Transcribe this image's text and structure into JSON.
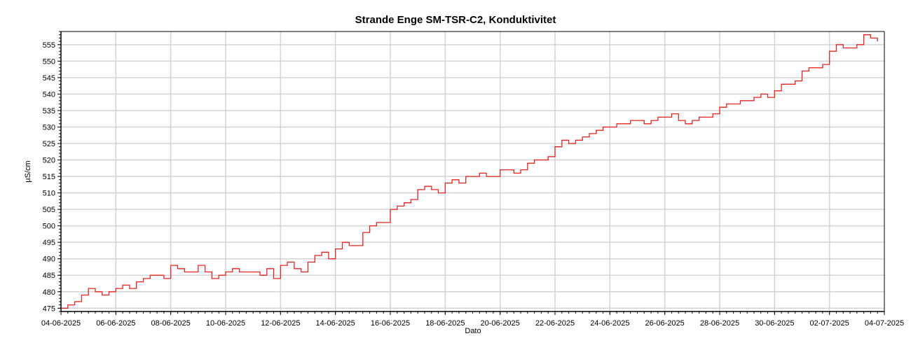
{
  "chart_data": {
    "type": "line",
    "title": "Strande Enge SM-TSR-C2, Konduktivitet",
    "xlabel": "Dato",
    "ylabel": "µS/cm",
    "xlim": [
      "2025-06-04",
      "2025-07-04"
    ],
    "ylim": [
      474,
      559
    ],
    "x_ticks": [
      "04-06-2025",
      "06-06-2025",
      "08-06-2025",
      "10-06-2025",
      "12-06-2025",
      "14-06-2025",
      "16-06-2025",
      "18-06-2025",
      "20-06-2025",
      "22-06-2025",
      "24-06-2025",
      "26-06-2025",
      "28-06-2025",
      "30-06-2025",
      "02-07-2025",
      "04-07-2025"
    ],
    "y_ticks": [
      475,
      480,
      485,
      490,
      495,
      500,
      505,
      510,
      515,
      520,
      525,
      530,
      535,
      540,
      545,
      550,
      555
    ],
    "grid": true,
    "legend": "none",
    "series": [
      {
        "color": "#e8231f",
        "x": [
          "2025-06-04 00:00",
          "2025-06-04 06:00",
          "2025-06-04 12:00",
          "2025-06-04 18:00",
          "2025-06-05 00:00",
          "2025-06-05 06:00",
          "2025-06-05 12:00",
          "2025-06-05 18:00",
          "2025-06-06 00:00",
          "2025-06-06 06:00",
          "2025-06-06 12:00",
          "2025-06-06 18:00",
          "2025-06-07 00:00",
          "2025-06-07 06:00",
          "2025-06-07 12:00",
          "2025-06-07 18:00",
          "2025-06-08 00:00",
          "2025-06-08 06:00",
          "2025-06-08 12:00",
          "2025-06-08 18:00",
          "2025-06-09 00:00",
          "2025-06-09 06:00",
          "2025-06-09 12:00",
          "2025-06-09 18:00",
          "2025-06-10 00:00",
          "2025-06-10 06:00",
          "2025-06-10 12:00",
          "2025-06-10 18:00",
          "2025-06-11 00:00",
          "2025-06-11 06:00",
          "2025-06-11 12:00",
          "2025-06-11 18:00",
          "2025-06-12 00:00",
          "2025-06-12 06:00",
          "2025-06-12 12:00",
          "2025-06-12 18:00",
          "2025-06-13 00:00",
          "2025-06-13 06:00",
          "2025-06-13 12:00",
          "2025-06-13 18:00",
          "2025-06-14 00:00",
          "2025-06-14 06:00",
          "2025-06-14 12:00",
          "2025-06-14 18:00",
          "2025-06-15 00:00",
          "2025-06-15 06:00",
          "2025-06-15 12:00",
          "2025-06-15 18:00",
          "2025-06-16 00:00",
          "2025-06-16 06:00",
          "2025-06-16 12:00",
          "2025-06-16 18:00",
          "2025-06-17 00:00",
          "2025-06-17 06:00",
          "2025-06-17 12:00",
          "2025-06-17 18:00",
          "2025-06-18 00:00",
          "2025-06-18 06:00",
          "2025-06-18 12:00",
          "2025-06-18 18:00",
          "2025-06-19 00:00",
          "2025-06-19 06:00",
          "2025-06-19 12:00",
          "2025-06-19 18:00",
          "2025-06-20 00:00",
          "2025-06-20 06:00",
          "2025-06-20 12:00",
          "2025-06-20 18:00",
          "2025-06-21 00:00",
          "2025-06-21 06:00",
          "2025-06-21 12:00",
          "2025-06-21 18:00",
          "2025-06-22 00:00",
          "2025-06-22 06:00",
          "2025-06-22 12:00",
          "2025-06-22 18:00",
          "2025-06-23 00:00",
          "2025-06-23 06:00",
          "2025-06-23 12:00",
          "2025-06-23 18:00",
          "2025-06-24 00:00",
          "2025-06-24 06:00",
          "2025-06-24 12:00",
          "2025-06-24 18:00",
          "2025-06-25 00:00",
          "2025-06-25 06:00",
          "2025-06-25 12:00",
          "2025-06-25 18:00",
          "2025-06-26 00:00",
          "2025-06-26 06:00",
          "2025-06-26 12:00",
          "2025-06-26 18:00",
          "2025-06-27 00:00",
          "2025-06-27 06:00",
          "2025-06-27 12:00",
          "2025-06-27 18:00",
          "2025-06-28 00:00",
          "2025-06-28 06:00",
          "2025-06-28 12:00",
          "2025-06-28 18:00",
          "2025-06-29 00:00",
          "2025-06-29 06:00",
          "2025-06-29 12:00",
          "2025-06-29 18:00",
          "2025-06-30 00:00",
          "2025-06-30 06:00",
          "2025-06-30 12:00",
          "2025-06-30 18:00",
          "2025-07-01 00:00",
          "2025-07-01 06:00",
          "2025-07-01 12:00",
          "2025-07-01 18:00",
          "2025-07-02 00:00",
          "2025-07-02 06:00",
          "2025-07-02 12:00",
          "2025-07-02 18:00",
          "2025-07-03 00:00",
          "2025-07-03 06:00",
          "2025-07-03 12:00",
          "2025-07-03 18:00"
        ],
        "y": [
          475,
          476,
          477,
          479,
          481,
          480,
          479,
          480,
          481,
          482,
          481,
          483,
          484,
          485,
          485,
          484,
          488,
          487,
          486,
          486,
          488,
          486,
          484,
          485,
          486,
          487,
          486,
          486,
          486,
          485,
          487,
          484,
          488,
          489,
          487,
          486,
          489,
          491,
          492,
          490,
          493,
          495,
          494,
          494,
          498,
          500,
          501,
          501,
          505,
          506,
          507,
          508,
          511,
          512,
          511,
          510,
          513,
          514,
          513,
          515,
          515,
          516,
          515,
          515,
          517,
          517,
          516,
          517,
          519,
          520,
          520,
          521,
          524,
          526,
          525,
          526,
          527,
          528,
          529,
          530,
          530,
          531,
          531,
          532,
          532,
          531,
          532,
          533,
          533,
          534,
          532,
          531,
          532,
          533,
          533,
          534,
          536,
          537,
          537,
          538,
          538,
          539,
          540,
          539,
          541,
          543,
          543,
          544,
          547,
          548,
          548,
          549,
          553,
          555,
          554,
          554,
          555,
          558,
          557,
          556
        ]
      }
    ]
  }
}
